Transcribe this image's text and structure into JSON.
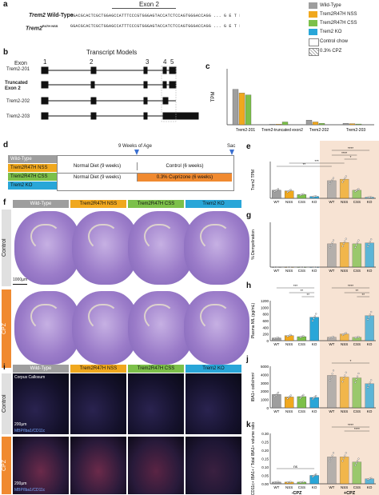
{
  "panels": {
    "a": "a",
    "b": "b",
    "c": "c",
    "d": "d",
    "e": "e",
    "f": "f",
    "g": "g",
    "h": "h",
    "i": "i",
    "j": "j",
    "k": "k"
  },
  "panel_a": {
    "exon_title": "Exon 2",
    "row1_label_gene": "Trem2",
    "row1_label_suffix": " Wild-Type",
    "row2_label_gene": "Trem2",
    "row2_label_sup": "R47H NSS",
    "seq1": "GGACGCACTCGCTGGAGCCATTTCCCGTGGGAGTACCATCTCCAGTGGGACCAGG ... G  E  T  L  Q  R  ... A  S  R  ... L  R  R  T  D  A  H",
    "seq2": "GGACGCACTCGCTGGAGCCATTTCCCGTGGGAGTACCATCTCCAGTGGGACCAGG ... G  E  T  L  Q  R  ... A  S  H  ... L  R  R  T  D  A  H"
  },
  "legend": {
    "items": [
      {
        "label": "Wild-Type",
        "color": "#9e9e9e"
      },
      {
        "label": "Trem2R47H NSS",
        "color": "#f0a81e"
      },
      {
        "label": "Trem2R47H CSS",
        "color": "#7cc04a"
      },
      {
        "label": "Trem2 KO",
        "color": "#29a6d8"
      }
    ],
    "control": "Control chow",
    "cpz": "0.3% CPZ"
  },
  "panel_b": {
    "title": "Transcript Models",
    "exon_label": "Exon",
    "exon_numbers": [
      "1",
      "2",
      "3",
      "4",
      "5"
    ],
    "transcripts": [
      "Trem2-201",
      "Truncated Exon 2",
      "Trem2-202",
      "Trem2-203"
    ]
  },
  "panel_c": {
    "ylabel": "TPM",
    "categories": [
      "Trem2-201",
      "Trem2-truncated exon2",
      "Trem2-202",
      "Trem2-203"
    ]
  },
  "panel_d": {
    "weeks9": "9 Weeks of Age",
    "sac": "Sac",
    "groups": [
      "Wild-Type",
      "Trem2R47H NSS",
      "Trem2R47H CSS",
      "Trem2 KO"
    ],
    "normal_diet": "Normal Diet (9 weeks)",
    "control": "Control (6 weeks)",
    "cuprizone": "0.3% Cuprizone (6 weeks)"
  },
  "panel_f": {
    "columns": [
      "Wild-Type",
      "Trem2R47H NSS",
      "Trem2R47H CSS",
      "Trem2 KO"
    ],
    "rows": [
      "Control",
      "CPZ"
    ],
    "scalebar": "1000µm"
  },
  "panel_i": {
    "columns": [
      "Wild-Type",
      "Trem2R47H NSS",
      "Trem2R47H CSS",
      "Trem2 KO"
    ],
    "rows": [
      "Control",
      "CPZ"
    ],
    "region": "Corpus Callosum",
    "scalebar": "200µm",
    "stain": "MBP/Iba1/CD11c"
  },
  "xlabels": {
    "wt": "WT",
    "nss": "NSS",
    "css": "CSS",
    "ko": "KO",
    "minus": "-CPZ",
    "plus": "+CPZ"
  },
  "chart_data": [
    {
      "id": "c",
      "type": "bar",
      "ylabel": "TPM",
      "categories": [
        "Trem2-201",
        "Trem2-truncated exon2",
        "Trem2-202",
        "Trem2-203"
      ],
      "series": [
        {
          "name": "Wild-Type",
          "values": [
            38,
            0.5,
            5,
            1.5
          ]
        },
        {
          "name": "Trem2R47H NSS",
          "values": [
            34,
            0.6,
            3,
            1.2
          ]
        },
        {
          "name": "Trem2R47H CSS",
          "values": [
            32,
            3,
            1.5,
            0.8
          ]
        },
        {
          "name": "Trem2 KO",
          "values": [
            0,
            0,
            0,
            0
          ]
        }
      ]
    },
    {
      "id": "e",
      "type": "bar",
      "ylabel": "Trem2 TPM",
      "categories": [
        "WT",
        "NSS",
        "CSS",
        "KO",
        "WT",
        "NSS",
        "CSS",
        "KO"
      ],
      "values": [
        22,
        20,
        10,
        5,
        48,
        52,
        22,
        3
      ],
      "ylim": [
        0,
        100
      ]
    },
    {
      "id": "g",
      "type": "bar",
      "ylabel": "% Demyelination",
      "categories": [
        "WT",
        "NSS",
        "CSS",
        "KO",
        "WT",
        "NSS",
        "CSS",
        "KO"
      ],
      "values": [
        0,
        0,
        0,
        0,
        52,
        55,
        52,
        54
      ],
      "ylim": [
        0,
        100
      ]
    },
    {
      "id": "h",
      "type": "bar",
      "ylabel": "Plasma NfL (pg/mL)",
      "categories": [
        "WT",
        "NSS",
        "CSS",
        "KO",
        "WT",
        "NSS",
        "CSS",
        "KO"
      ],
      "values": [
        80,
        150,
        120,
        700,
        100,
        200,
        100,
        750
      ],
      "yticks": [
        "0",
        "200",
        "400",
        "600",
        "800",
        "1000",
        "1200"
      ],
      "ylim": [
        0,
        1200
      ]
    },
    {
      "id": "j",
      "type": "bar",
      "ylabel": "IBA1+ cells/mm²",
      "categories": [
        "WT",
        "NSS",
        "CSS",
        "KO",
        "WT",
        "NSS",
        "CSS",
        "KO"
      ],
      "values": [
        1600,
        1300,
        1350,
        1250,
        3900,
        3700,
        3600,
        2900
      ],
      "yticks": [
        "0",
        "1000",
        "2000",
        "3000",
        "4000",
        "5000"
      ],
      "ylim": [
        0,
        5000
      ]
    },
    {
      "id": "k",
      "type": "bar",
      "ylabel": "CD11c+ IBA1+ / Total IBA1+ volume ratio",
      "categories": [
        "WT",
        "NSS",
        "CSS",
        "KO",
        "WT",
        "NSS",
        "CSS",
        "KO"
      ],
      "values": [
        0.01,
        0.01,
        0.01,
        0.05,
        0.16,
        0.16,
        0.13,
        0.03
      ],
      "yticks": [
        "0.00",
        "0.05",
        "0.10",
        "0.15",
        "0.20",
        "0.25",
        "0.30"
      ],
      "ylim": [
        0,
        0.3
      ]
    }
  ],
  "sig": {
    "s4": "****",
    "s3": "***",
    "s2": "**",
    "s1": "*",
    "ns": "ns"
  },
  "colors": {
    "wt": "#9e9e9e",
    "nss": "#f0a81e",
    "css": "#7cc04a",
    "ko": "#29a6d8",
    "cpz_bg": "#f7e3d3",
    "cpz_label": "#e07b2c"
  }
}
